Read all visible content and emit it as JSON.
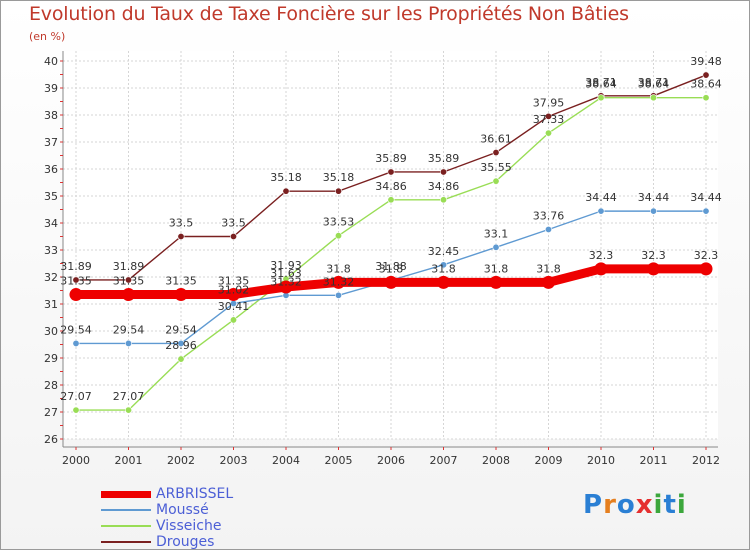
{
  "title": "Evolution du Taux de Taxe Foncière sur les Propriétés Non Bâties",
  "unit": "(en %)",
  "logo": {
    "letters": [
      "P",
      "r",
      "o",
      "x",
      "i",
      "t",
      "i"
    ],
    "colors": [
      "#2a7fd4",
      "#e57f1f",
      "#2a7fd4",
      "#e52f2f",
      "#3ca73c",
      "#2a7fd4",
      "#3ca73c"
    ]
  },
  "chart_data": {
    "type": "line",
    "x": [
      "2000",
      "2001",
      "2002",
      "2003",
      "2004",
      "2005",
      "2006",
      "2007",
      "2008",
      "2009",
      "2010",
      "2011",
      "2012"
    ],
    "ylim": [
      26,
      40
    ],
    "yticks": [
      "26",
      "27",
      "28",
      "29",
      "30",
      "31",
      "32",
      "33",
      "34",
      "35",
      "36",
      "37",
      "38",
      "39",
      "40"
    ],
    "grid": true,
    "legend_position": "bottom-left",
    "series": [
      {
        "name": "ARBRISSEL",
        "color": "#ee0000",
        "values": [
          31.35,
          31.35,
          31.35,
          31.35,
          31.63,
          31.8,
          31.8,
          31.8,
          31.8,
          31.8,
          32.3,
          32.3,
          32.3
        ],
        "labels": [
          "31.35",
          "31.35",
          "31.35",
          "31.35",
          "31.63",
          "31.8",
          "31.8",
          "31.8",
          "31.8",
          "31.8",
          "32.3",
          "32.3",
          "32.3"
        ]
      },
      {
        "name": "Moussé",
        "color": "#5f9ad2",
        "values": [
          29.54,
          29.54,
          29.54,
          31.02,
          31.32,
          31.32,
          31.88,
          32.45,
          33.1,
          33.76,
          34.44,
          34.44,
          34.44
        ],
        "labels": [
          "29.54",
          "29.54",
          "29.54",
          "31.02",
          "31.32",
          "31.32",
          "31.88",
          "32.45",
          "33.1",
          "33.76",
          "34.44",
          "34.44",
          "34.44"
        ]
      },
      {
        "name": "Visseiche",
        "color": "#99dd55",
        "values": [
          27.07,
          27.07,
          28.96,
          30.41,
          31.93,
          33.53,
          34.86,
          34.86,
          35.55,
          37.33,
          38.64,
          38.64,
          38.64
        ],
        "labels": [
          "27.07",
          "27.07",
          "28.96",
          "30.41",
          "31.93",
          "33.53",
          "34.86",
          "34.86",
          "35.55",
          "37.33",
          "38.64",
          "38.64",
          "38.64"
        ]
      },
      {
        "name": "Drouges",
        "color": "#7a2020",
        "values": [
          31.89,
          31.89,
          33.5,
          33.5,
          35.18,
          35.18,
          35.89,
          35.89,
          36.61,
          37.95,
          38.71,
          38.71,
          39.48
        ],
        "labels": [
          "31.89",
          "31.89",
          "33.5",
          "33.5",
          "35.18",
          "35.18",
          "35.89",
          "35.89",
          "36.61",
          "37.95",
          "38.71",
          "38.71",
          "39.48"
        ]
      }
    ]
  }
}
